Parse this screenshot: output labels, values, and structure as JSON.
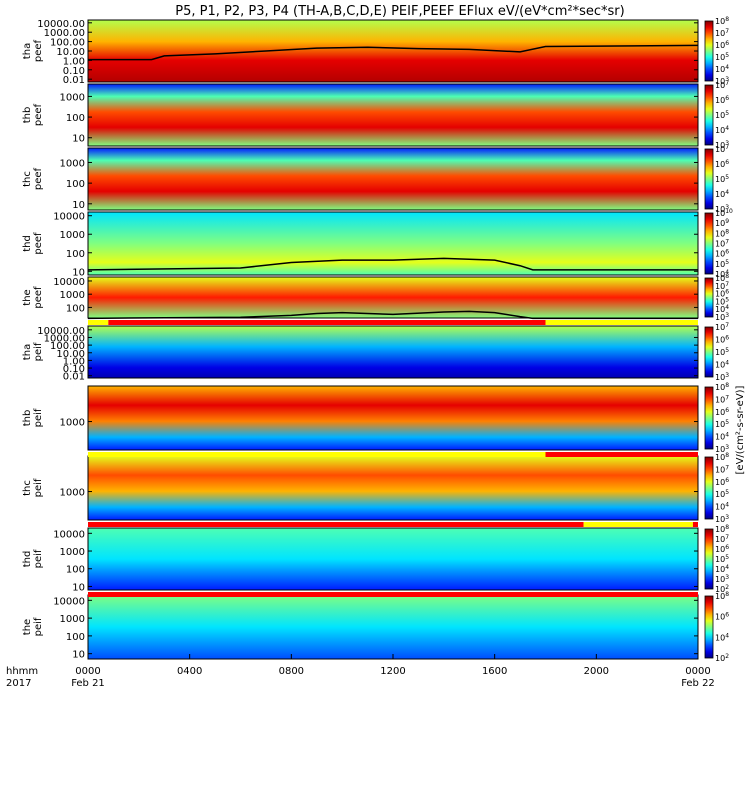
{
  "title": "P5, P1, P2, P3, P4 (TH-A,B,C,D,E) PEIF,PEEF EFlux eV/(eV*cm²*sec*sr)",
  "colorbar_unit_label": "[eV/(cm²-s-sr-eV)]",
  "colors": {
    "flag_red": "#ff0000",
    "flag_yellow": "#ffff00",
    "trace": "#000000"
  },
  "xaxis": {
    "label_line1": "hhmm",
    "label_line2": "2017",
    "ticks": [
      "0000",
      "0400",
      "0800",
      "1200",
      "1600",
      "2000",
      "0000"
    ],
    "tick_hours": [
      0,
      4,
      8,
      12,
      16,
      20,
      24
    ],
    "dates": [
      {
        "hour": 0,
        "text": "Feb 21"
      },
      {
        "hour": 24,
        "text": "Feb 22"
      }
    ]
  },
  "chart_data": [
    {
      "type": "heatmap",
      "name": "tha-peef",
      "ylabel": [
        "tha",
        "peef"
      ],
      "yticks": [
        "10000.00",
        "1000.00",
        "100.00",
        "10.00",
        "1.00",
        "0.10",
        "0.01"
      ],
      "ytick_values": [
        10000,
        1000,
        100,
        10,
        1,
        0.1,
        0.01
      ],
      "ylog_range": [
        -2.3,
        4.3
      ],
      "colorbar_ticks": [
        "10^8",
        "10^7",
        "10^6",
        "10^5",
        "10^4",
        "10^3"
      ],
      "cb_exp": [
        3,
        8
      ],
      "trace_hours": [
        0,
        2.5,
        3,
        5,
        7,
        9,
        11,
        13,
        15,
        17,
        18,
        24
      ],
      "trace_values": [
        1.2,
        1.2,
        3,
        5,
        10,
        20,
        25,
        18,
        15,
        8,
        30,
        40
      ]
    },
    {
      "type": "heatmap",
      "name": "thb-peef",
      "ylabel": [
        "thb",
        "peef"
      ],
      "yticks": [
        "1000",
        "100",
        "10"
      ],
      "ytick_values": [
        1000,
        100,
        10
      ],
      "ylog_range": [
        0.6,
        3.6
      ],
      "colorbar_ticks": [
        "10^7",
        "10^6",
        "10^5",
        "10^4",
        "10^3"
      ],
      "cb_exp": [
        3,
        7
      ]
    },
    {
      "type": "heatmap",
      "name": "thc-peef",
      "ylabel": [
        "thc",
        "peef"
      ],
      "yticks": [
        "1000",
        "100",
        "10"
      ],
      "ytick_values": [
        1000,
        100,
        10
      ],
      "ylog_range": [
        0.7,
        3.7
      ],
      "colorbar_ticks": [
        "10^7",
        "10^6",
        "10^5",
        "10^4",
        "10^3"
      ],
      "cb_exp": [
        3,
        7
      ]
    },
    {
      "type": "heatmap",
      "name": "thd-peef",
      "ylabel": [
        "thd",
        "peef"
      ],
      "yticks": [
        "10000",
        "1000",
        "100",
        "10"
      ],
      "ytick_values": [
        10000,
        1000,
        100,
        10
      ],
      "ylog_range": [
        0.8,
        4.2
      ],
      "colorbar_ticks": [
        "10^10",
        "10^9",
        "10^8",
        "10^7",
        "10^6",
        "10^5",
        "10^4"
      ],
      "cb_exp": [
        4,
        10
      ],
      "trace_hours": [
        0,
        6,
        8,
        10,
        12,
        14,
        16,
        17,
        17.5,
        24
      ],
      "trace_values": [
        12,
        15,
        30,
        40,
        40,
        50,
        40,
        20,
        12,
        12
      ]
    },
    {
      "type": "heatmap",
      "name": "the-peef",
      "ylabel": [
        "the",
        "peef"
      ],
      "yticks": [
        "10000",
        "1000",
        "100"
      ],
      "ytick_values": [
        10000,
        1000,
        100
      ],
      "ylog_range": [
        1.2,
        4.3
      ],
      "colorbar_ticks": [
        "10^8",
        "10^7",
        "10^6",
        "10^5",
        "10^4",
        "10^3"
      ],
      "cb_exp": [
        3,
        8
      ],
      "trace_hours": [
        0,
        6,
        8,
        9,
        10,
        12,
        14,
        15,
        16,
        17,
        17.5,
        24
      ],
      "trace_values": [
        15,
        18,
        25,
        35,
        40,
        30,
        45,
        50,
        40,
        20,
        15,
        15
      ]
    },
    {
      "type": "heatmap",
      "name": "tha-peif",
      "ylabel": [
        "tha",
        "peif"
      ],
      "yticks": [
        "10000.00",
        "1000.00",
        "100.00",
        "10.00",
        "1.00",
        "0.10",
        "0.01"
      ],
      "ytick_values": [
        10000,
        1000,
        100,
        10,
        1,
        0.1,
        0.01
      ],
      "ylog_range": [
        -2.3,
        4.5
      ],
      "colorbar_ticks": [
        "10^7",
        "10^6",
        "10^5",
        "10^4",
        "10^3"
      ],
      "cb_exp": [
        3,
        7
      ]
    },
    {
      "type": "heatmap",
      "name": "thb-peif",
      "ylabel": [
        "thb",
        "peif"
      ],
      "yticks": [
        "1000"
      ],
      "ytick_values": [
        1000
      ],
      "ylog_range": [
        1.8,
        4.5
      ],
      "colorbar_ticks": [
        "10^8",
        "10^7",
        "10^6",
        "10^5",
        "10^4",
        "10^3"
      ],
      "cb_exp": [
        3,
        8
      ]
    },
    {
      "type": "heatmap",
      "name": "thc-peif",
      "ylabel": [
        "thc",
        "peif"
      ],
      "yticks": [
        "1000"
      ],
      "ytick_values": [
        1000
      ],
      "ylog_range": [
        1.8,
        4.5
      ],
      "colorbar_ticks": [
        "10^8",
        "10^7",
        "10^6",
        "10^5",
        "10^4",
        "10^3"
      ],
      "cb_exp": [
        3,
        8
      ]
    },
    {
      "type": "heatmap",
      "name": "thd-peif",
      "ylabel": [
        "thd",
        "peif"
      ],
      "yticks": [
        "10000",
        "1000",
        "100",
        "10"
      ],
      "ytick_values": [
        10000,
        1000,
        100,
        10
      ],
      "ylog_range": [
        0.8,
        4.3
      ],
      "colorbar_ticks": [
        "10^8",
        "10^7",
        "10^6",
        "10^5",
        "10^4",
        "10^3",
        "10^2"
      ],
      "cb_exp": [
        2,
        8
      ]
    },
    {
      "type": "heatmap",
      "name": "the-peif",
      "ylabel": [
        "the",
        "peif"
      ],
      "yticks": [
        "10000",
        "1000",
        "100",
        "10"
      ],
      "ytick_values": [
        10000,
        1000,
        100,
        10
      ],
      "ylog_range": [
        0.7,
        4.3
      ],
      "colorbar_ticks": [
        "10^8",
        "10^6",
        "10^4",
        "10^2"
      ],
      "cb_exp": [
        2,
        8
      ]
    }
  ],
  "flag_bars": [
    {
      "before": 4,
      "segments": [
        {
          "from": 0,
          "to": 0.8,
          "color": "yellow"
        },
        {
          "from": 0.8,
          "to": 18,
          "color": "red"
        },
        {
          "from": 18,
          "to": 24,
          "color": "yellow"
        }
      ]
    },
    {
      "before": 5,
      "segments": [
        {
          "from": 0,
          "to": 18,
          "color": "yellow"
        },
        {
          "from": 18,
          "to": 24,
          "color": "red"
        }
      ]
    },
    {
      "before": 7,
      "segments": [
        {
          "from": 0,
          "to": 19.5,
          "color": "red"
        },
        {
          "from": 19.5,
          "to": 23.8,
          "color": "yellow"
        },
        {
          "from": 23.8,
          "to": 24,
          "color": "red"
        }
      ]
    },
    {
      "before": 8,
      "segments": [
        {
          "from": 0,
          "to": 24,
          "color": "red"
        }
      ]
    }
  ]
}
